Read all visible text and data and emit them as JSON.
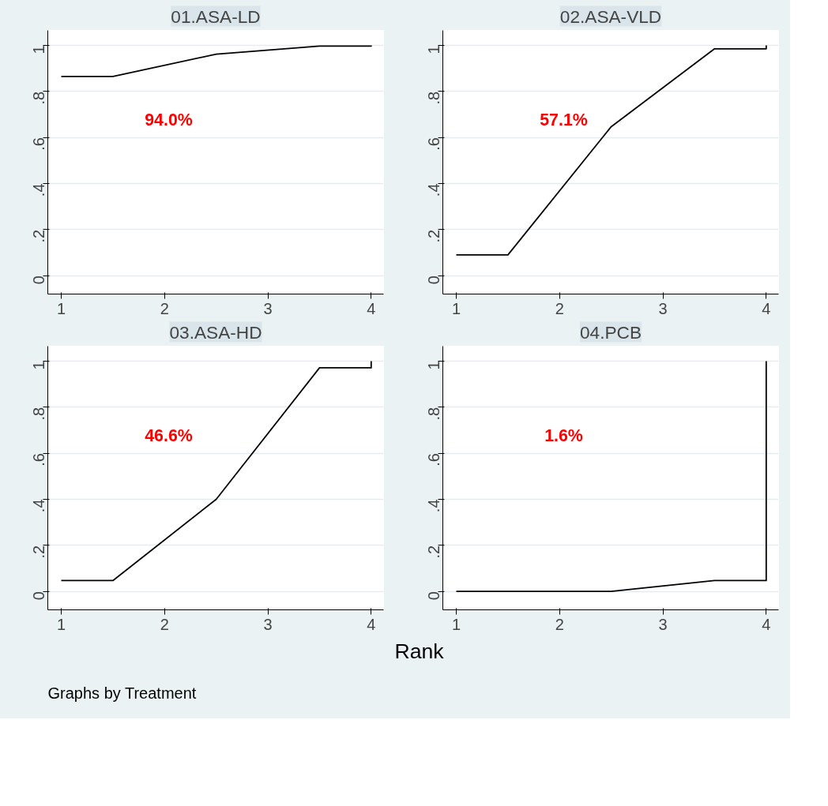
{
  "chart_data": [
    {
      "type": "line",
      "title": "01.ASA-LD",
      "x": [
        1,
        1.5,
        2.5,
        3.5,
        4,
        4
      ],
      "xlim": [
        0.87,
        4.12
      ],
      "ylim": [
        -0.08,
        1.065
      ],
      "xticks": [
        1,
        2,
        3,
        4
      ],
      "yticks": [
        0,
        {
          "value": 0.2,
          "label": ".2"
        },
        {
          "value": 0.4,
          "label": ".4"
        },
        {
          "value": 0.6,
          "label": ".6"
        },
        {
          "value": 0.8,
          "label": ".8"
        },
        1
      ],
      "grid": "y",
      "series": [
        {
          "color": "#000000",
          "values": [
            0.865,
            0.865,
            0.962,
            0.997,
            0.997,
            1
          ]
        }
      ],
      "annotations": [
        "94.0%"
      ]
    },
    {
      "type": "line",
      "title": "02.ASA-VLD",
      "x": [
        1,
        1.5,
        2.5,
        3.5,
        4,
        4
      ],
      "xlim": [
        0.87,
        4.12
      ],
      "ylim": [
        -0.08,
        1.065
      ],
      "xticks": [
        1,
        2,
        3,
        4
      ],
      "yticks": [
        0,
        {
          "value": 0.2,
          "label": ".2"
        },
        {
          "value": 0.4,
          "label": ".4"
        },
        {
          "value": 0.6,
          "label": ".6"
        },
        {
          "value": 0.8,
          "label": ".8"
        },
        1
      ],
      "grid": "y",
      "series": [
        {
          "color": "#000000",
          "values": [
            0.09,
            0.09,
            0.647,
            0.985,
            0.985,
            1
          ]
        }
      ],
      "annotations": [
        "57.1%"
      ]
    },
    {
      "type": "line",
      "title": "03.ASA-HD",
      "x": [
        1,
        1.5,
        2.5,
        3.5,
        4,
        4
      ],
      "xlim": [
        0.87,
        4.12
      ],
      "ylim": [
        -0.08,
        1.065
      ],
      "xticks": [
        1,
        2,
        3,
        4
      ],
      "yticks": [
        0,
        {
          "value": 0.2,
          "label": ".2"
        },
        {
          "value": 0.4,
          "label": ".4"
        },
        {
          "value": 0.6,
          "label": ".6"
        },
        {
          "value": 0.8,
          "label": ".8"
        },
        1
      ],
      "grid": "y",
      "series": [
        {
          "color": "#000000",
          "values": [
            0.047,
            0.047,
            0.4,
            0.971,
            0.971,
            1
          ]
        }
      ],
      "annotations": [
        "46.6%",
        "Graphs by Treatment"
      ]
    },
    {
      "type": "line",
      "title": "04.PCB",
      "xlabel": "Rank",
      "x": [
        1,
        1.5,
        2.5,
        3.5,
        4,
        4
      ],
      "xlim": [
        0.87,
        4.12
      ],
      "ylim": [
        -0.08,
        1.065
      ],
      "xticks": [
        1,
        2,
        3,
        4
      ],
      "yticks": [
        0,
        {
          "value": 0.2,
          "label": ".2"
        },
        {
          "value": 0.4,
          "label": ".4"
        },
        {
          "value": 0.6,
          "label": ".6"
        },
        {
          "value": 0.8,
          "label": ".8"
        },
        1
      ],
      "grid": "y",
      "series": [
        {
          "color": "#000000",
          "values": [
            0,
            0,
            0,
            0.047,
            0.047,
            1
          ]
        }
      ],
      "annotations": [
        "1.6%"
      ]
    }
  ]
}
